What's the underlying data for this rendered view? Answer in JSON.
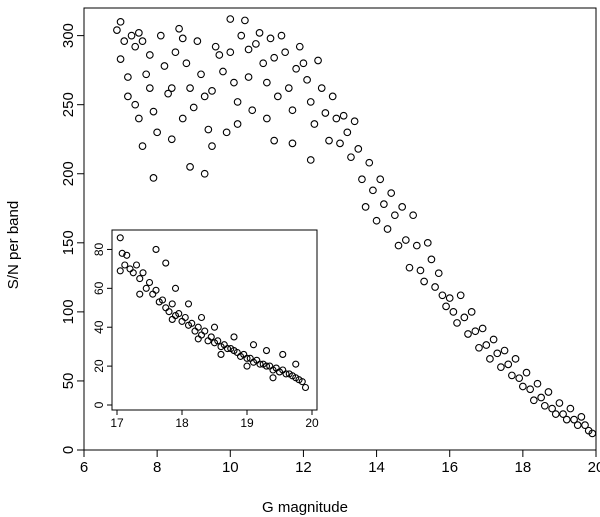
{
  "chart_data": [
    {
      "type": "scatter",
      "title": "",
      "xlabel": "G magnitude",
      "ylabel": "S/N per band",
      "xlim": [
        6,
        20
      ],
      "ylim": [
        0,
        320
      ],
      "xticks": [
        6,
        8,
        10,
        12,
        14,
        16,
        18,
        20
      ],
      "yticks": [
        0,
        50,
        100,
        150,
        200,
        250,
        300
      ],
      "marker": "open-circle",
      "grid": false,
      "points": [
        [
          6.9,
          304
        ],
        [
          7.0,
          310
        ],
        [
          7.1,
          296
        ],
        [
          7.0,
          283
        ],
        [
          7.2,
          270
        ],
        [
          7.3,
          300
        ],
        [
          7.4,
          292
        ],
        [
          7.2,
          256
        ],
        [
          7.5,
          302
        ],
        [
          7.6,
          296
        ],
        [
          7.4,
          250
        ],
        [
          7.5,
          240
        ],
        [
          7.6,
          220
        ],
        [
          7.7,
          272
        ],
        [
          7.8,
          286
        ],
        [
          7.8,
          262
        ],
        [
          7.9,
          245
        ],
        [
          8.0,
          230
        ],
        [
          7.9,
          197
        ],
        [
          8.1,
          300
        ],
        [
          8.2,
          278
        ],
        [
          8.3,
          258
        ],
        [
          8.4,
          262
        ],
        [
          8.5,
          288
        ],
        [
          8.4,
          225
        ],
        [
          8.6,
          305
        ],
        [
          8.7,
          298
        ],
        [
          8.8,
          280
        ],
        [
          8.7,
          240
        ],
        [
          8.9,
          262
        ],
        [
          8.9,
          205
        ],
        [
          9.0,
          248
        ],
        [
          9.1,
          296
        ],
        [
          9.2,
          272
        ],
        [
          9.3,
          256
        ],
        [
          9.4,
          232
        ],
        [
          9.3,
          200
        ],
        [
          9.5,
          220
        ],
        [
          9.5,
          260
        ],
        [
          9.6,
          292
        ],
        [
          9.7,
          286
        ],
        [
          9.8,
          274
        ],
        [
          9.9,
          230
        ],
        [
          10.0,
          312
        ],
        [
          10.0,
          288
        ],
        [
          10.1,
          266
        ],
        [
          10.2,
          252
        ],
        [
          10.2,
          236
        ],
        [
          10.3,
          300
        ],
        [
          10.4,
          311
        ],
        [
          10.5,
          290
        ],
        [
          10.5,
          270
        ],
        [
          10.6,
          246
        ],
        [
          10.7,
          294
        ],
        [
          10.8,
          302
        ],
        [
          10.9,
          280
        ],
        [
          11.0,
          266
        ],
        [
          11.0,
          240
        ],
        [
          11.1,
          298
        ],
        [
          11.2,
          284
        ],
        [
          11.3,
          256
        ],
        [
          11.2,
          224
        ],
        [
          11.4,
          300
        ],
        [
          11.5,
          288
        ],
        [
          11.6,
          262
        ],
        [
          11.7,
          246
        ],
        [
          11.8,
          276
        ],
        [
          11.7,
          222
        ],
        [
          11.9,
          292
        ],
        [
          12.0,
          280
        ],
        [
          12.1,
          268
        ],
        [
          12.2,
          252
        ],
        [
          12.3,
          236
        ],
        [
          12.2,
          210
        ],
        [
          12.4,
          282
        ],
        [
          12.5,
          262
        ],
        [
          12.6,
          244
        ],
        [
          12.7,
          224
        ],
        [
          12.8,
          256
        ],
        [
          12.9,
          240
        ],
        [
          13.0,
          222
        ],
        [
          13.1,
          242
        ],
        [
          13.2,
          230
        ],
        [
          13.3,
          212
        ],
        [
          13.4,
          238
        ],
        [
          13.5,
          218
        ],
        [
          13.6,
          196
        ],
        [
          13.7,
          176
        ],
        [
          13.8,
          208
        ],
        [
          13.9,
          188
        ],
        [
          14.0,
          166
        ],
        [
          14.1,
          196
        ],
        [
          14.2,
          178
        ],
        [
          14.3,
          160
        ],
        [
          14.4,
          186
        ],
        [
          14.5,
          170
        ],
        [
          14.6,
          148
        ],
        [
          14.7,
          176
        ],
        [
          14.8,
          152
        ],
        [
          14.9,
          132
        ],
        [
          15.0,
          170
        ],
        [
          15.1,
          148
        ],
        [
          15.2,
          130
        ],
        [
          15.3,
          122
        ],
        [
          15.4,
          150
        ],
        [
          15.5,
          138
        ],
        [
          15.6,
          118
        ],
        [
          15.7,
          128
        ],
        [
          15.8,
          112
        ],
        [
          15.9,
          104
        ],
        [
          16.0,
          110
        ],
        [
          16.1,
          100
        ],
        [
          16.2,
          92
        ],
        [
          16.3,
          112
        ],
        [
          16.4,
          96
        ],
        [
          16.5,
          84
        ],
        [
          16.6,
          100
        ],
        [
          16.7,
          86
        ],
        [
          16.8,
          74
        ],
        [
          16.9,
          88
        ],
        [
          17.0,
          76
        ],
        [
          17.1,
          66
        ],
        [
          17.2,
          80
        ],
        [
          17.3,
          70
        ],
        [
          17.4,
          60
        ],
        [
          17.5,
          72
        ],
        [
          17.6,
          62
        ],
        [
          17.7,
          54
        ],
        [
          17.8,
          66
        ],
        [
          17.9,
          52
        ],
        [
          18.0,
          46
        ],
        [
          18.1,
          56
        ],
        [
          18.2,
          44
        ],
        [
          18.3,
          36
        ],
        [
          18.4,
          48
        ],
        [
          18.5,
          38
        ],
        [
          18.6,
          32
        ],
        [
          18.7,
          42
        ],
        [
          18.8,
          30
        ],
        [
          18.9,
          26
        ],
        [
          19.0,
          34
        ],
        [
          19.1,
          26
        ],
        [
          19.2,
          22
        ],
        [
          19.3,
          30
        ],
        [
          19.4,
          22
        ],
        [
          19.5,
          18
        ],
        [
          19.6,
          24
        ],
        [
          19.7,
          18
        ],
        [
          19.8,
          14
        ],
        [
          19.9,
          12
        ]
      ]
    },
    {
      "type": "scatter",
      "title": "",
      "xlabel": "",
      "ylabel": "",
      "xlim": [
        17,
        20
      ],
      "ylim": [
        0,
        90
      ],
      "xticks": [
        17,
        18,
        19,
        20
      ],
      "yticks": [
        0,
        20,
        40,
        60,
        80
      ],
      "marker": "open-circle",
      "grid": false,
      "points": [
        [
          17.05,
          86
        ],
        [
          17.08,
          78
        ],
        [
          17.12,
          72
        ],
        [
          17.05,
          69
        ],
        [
          17.15,
          77
        ],
        [
          17.2,
          70
        ],
        [
          17.25,
          68
        ],
        [
          17.3,
          72
        ],
        [
          17.35,
          65
        ],
        [
          17.4,
          68
        ],
        [
          17.45,
          60
        ],
        [
          17.5,
          63
        ],
        [
          17.55,
          57
        ],
        [
          17.6,
          59
        ],
        [
          17.65,
          53
        ],
        [
          17.7,
          54
        ],
        [
          17.75,
          50
        ],
        [
          17.8,
          48
        ],
        [
          17.85,
          52
        ],
        [
          17.9,
          46
        ],
        [
          17.95,
          47
        ],
        [
          18.0,
          43
        ],
        [
          18.05,
          45
        ],
        [
          18.1,
          41
        ],
        [
          18.15,
          42
        ],
        [
          18.2,
          38
        ],
        [
          18.25,
          40
        ],
        [
          18.3,
          36
        ],
        [
          18.35,
          38
        ],
        [
          18.4,
          33
        ],
        [
          18.45,
          35
        ],
        [
          18.5,
          32
        ],
        [
          18.55,
          33
        ],
        [
          18.6,
          30
        ],
        [
          18.65,
          31
        ],
        [
          18.7,
          29
        ],
        [
          18.75,
          29
        ],
        [
          18.8,
          28
        ],
        [
          18.85,
          27
        ],
        [
          18.9,
          25
        ],
        [
          18.95,
          26
        ],
        [
          19.0,
          24
        ],
        [
          19.05,
          24
        ],
        [
          19.1,
          22
        ],
        [
          19.15,
          23
        ],
        [
          19.2,
          21
        ],
        [
          19.25,
          21
        ],
        [
          19.3,
          20
        ],
        [
          19.35,
          20
        ],
        [
          19.4,
          18
        ],
        [
          19.45,
          19
        ],
        [
          19.5,
          17
        ],
        [
          19.55,
          18
        ],
        [
          19.6,
          16
        ],
        [
          19.65,
          16
        ],
        [
          19.7,
          15
        ],
        [
          19.75,
          14
        ],
        [
          19.8,
          13
        ],
        [
          19.85,
          12
        ],
        [
          19.9,
          9
        ],
        [
          17.6,
          80
        ],
        [
          17.75,
          73
        ],
        [
          17.9,
          60
        ],
        [
          18.1,
          52
        ],
        [
          18.3,
          45
        ],
        [
          18.5,
          40
        ],
        [
          18.8,
          35
        ],
        [
          19.1,
          31
        ],
        [
          19.3,
          28
        ],
        [
          19.55,
          26
        ],
        [
          19.75,
          21
        ],
        [
          17.35,
          57
        ],
        [
          17.85,
          44
        ],
        [
          18.25,
          34
        ],
        [
          18.6,
          26
        ],
        [
          19.0,
          20
        ],
        [
          19.4,
          14
        ]
      ]
    }
  ]
}
